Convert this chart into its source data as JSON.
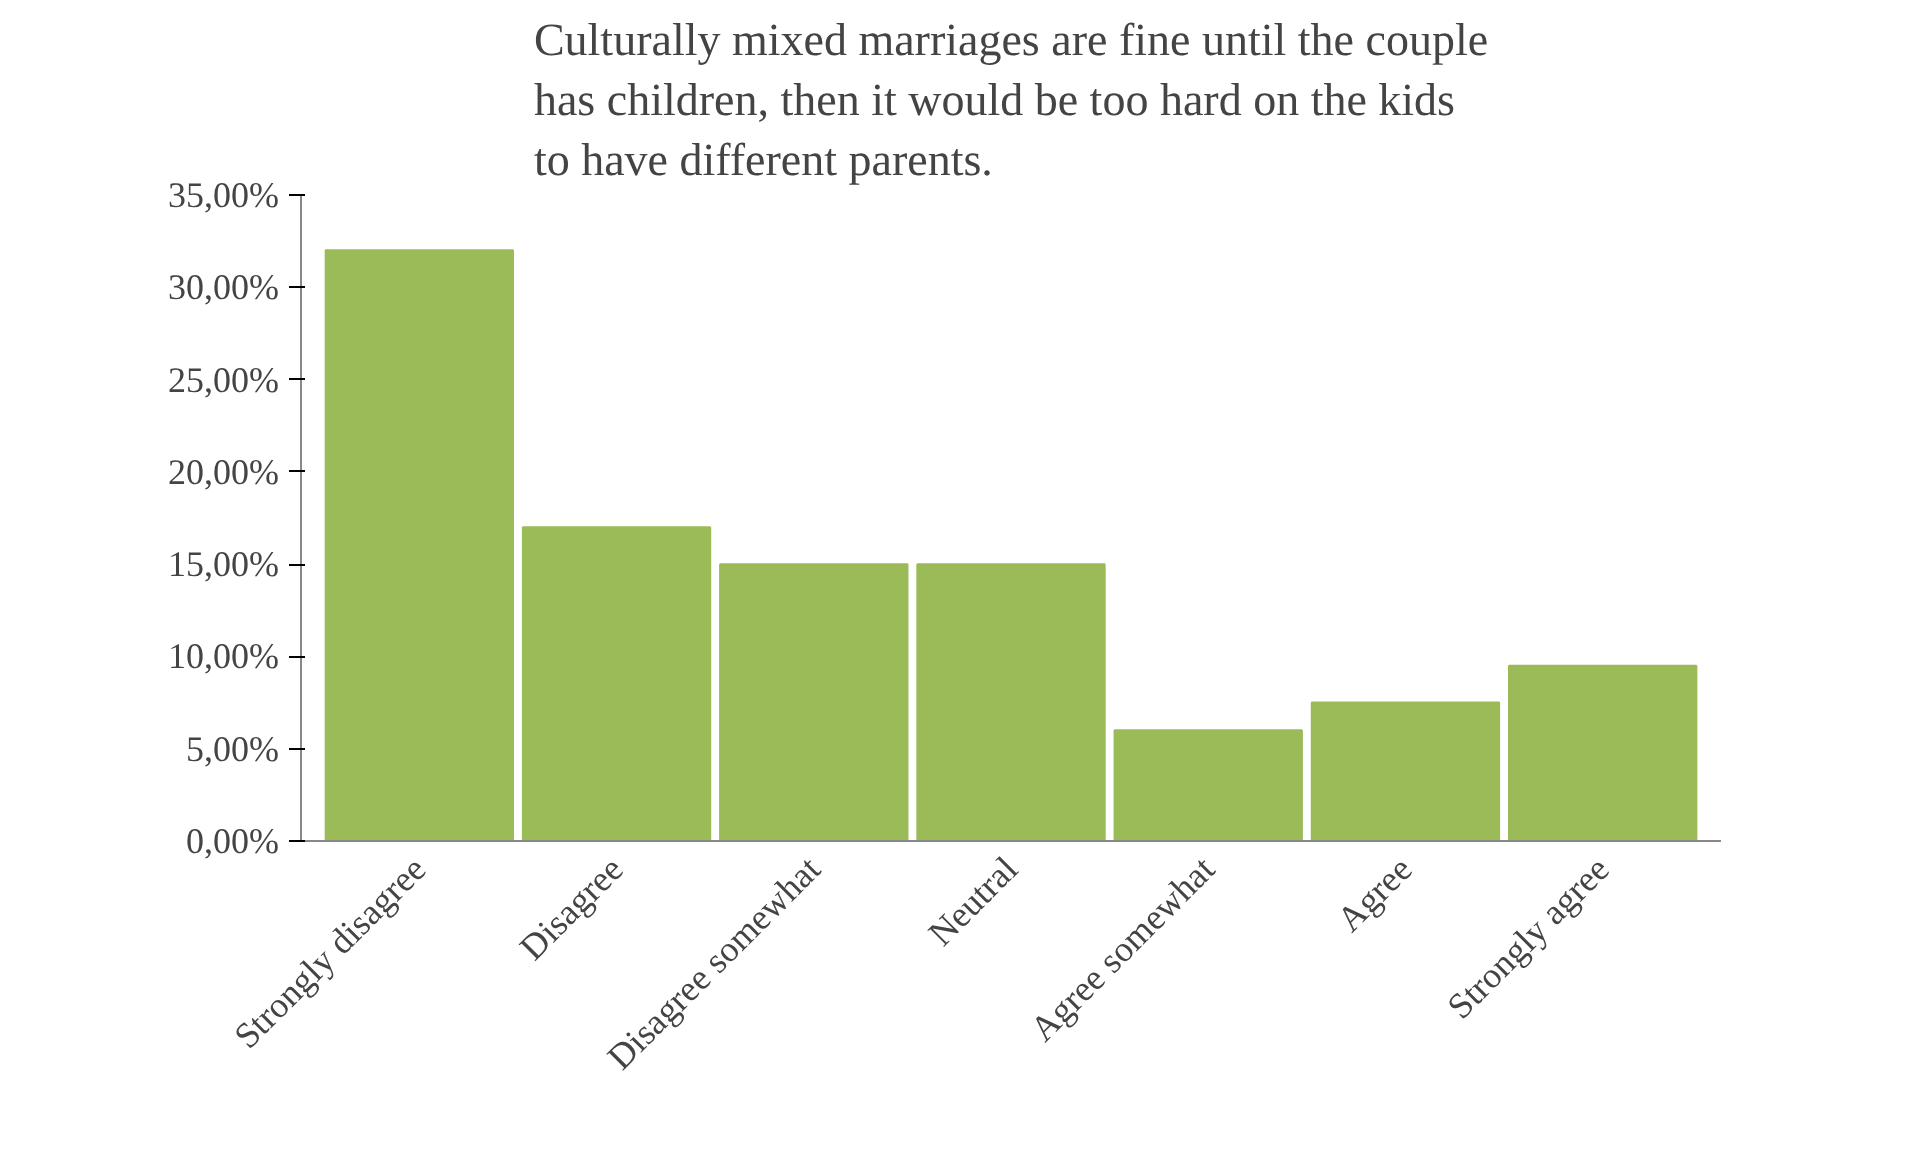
{
  "chart_data": {
    "type": "bar",
    "title": "Culturally mixed marriages are fine until the couple has children, then it would be too hard on the kids to have different parents.",
    "categories": [
      "Strongly disagree",
      "Disagree",
      "Disagree somewhat",
      "Neutral",
      "Agree somewhat",
      "Agree",
      "Strongly agree"
    ],
    "values": [
      32,
      17,
      15,
      15,
      6,
      7.5,
      9.5
    ],
    "color": "#9bbb59",
    "ylim": [
      0,
      35
    ],
    "yticks": [
      {
        "value": 0,
        "label": "0,00%"
      },
      {
        "value": 5,
        "label": "5,00%"
      },
      {
        "value": 10,
        "label": "10,00%"
      },
      {
        "value": 15,
        "label": "15,00%"
      },
      {
        "value": 20,
        "label": "20,00%"
      },
      {
        "value": 25,
        "label": "25,00%"
      },
      {
        "value": 30,
        "label": "30,00%"
      },
      {
        "value": 35,
        "label": "35,00%"
      }
    ],
    "grid": false
  }
}
